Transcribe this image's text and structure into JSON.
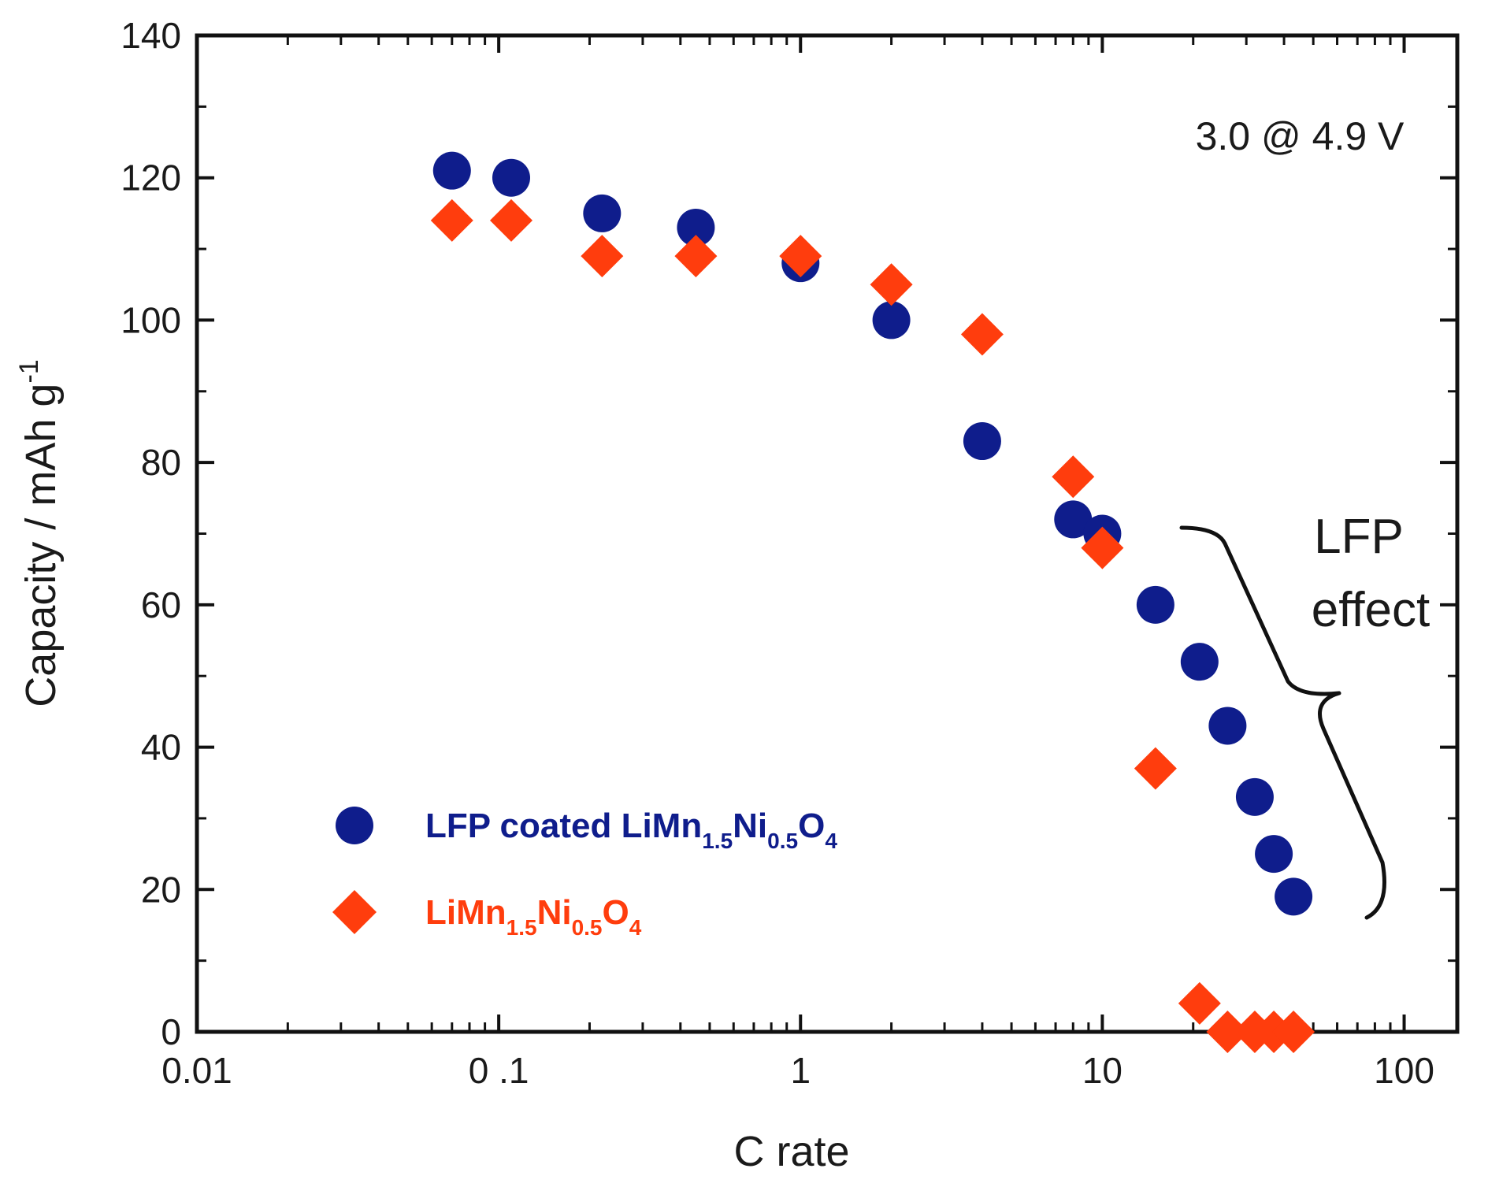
{
  "chart_data": {
    "type": "scatter",
    "title": "",
    "xlabel": "C rate",
    "ylabel": "Capacity / mAh g",
    "ylabel_sup": "-1",
    "xscale": "log",
    "xlim": [
      0.01,
      150
    ],
    "ylim": [
      0,
      140
    ],
    "xticks": [
      {
        "value": 0.01,
        "label": "0.01"
      },
      {
        "value": 0.1,
        "label": "0 .1"
      },
      {
        "value": 1,
        "label": "1"
      },
      {
        "value": 10,
        "label": "10"
      },
      {
        "value": 100,
        "label": "100"
      }
    ],
    "yticks": [
      0,
      20,
      40,
      60,
      80,
      100,
      120,
      140
    ],
    "annotation": "3.0 @ 4.9 V",
    "bracket_label_line1": "LFP",
    "bracket_label_line2": "effect",
    "series": [
      {
        "name": "LFP coated LiMn1.5Ni0.5O4",
        "legend_parts": [
          "LFP coated LiMn",
          "1.5",
          "Ni",
          "0.5",
          "O",
          "4"
        ],
        "marker": "circle",
        "color": "#0f1d8c",
        "x": [
          0.07,
          0.11,
          0.22,
          0.45,
          1.0,
          2.0,
          4.0,
          8.0,
          10.0,
          15.0,
          21.0,
          26.0,
          32.0,
          37.0,
          43.0
        ],
        "y": [
          121,
          120,
          115,
          113,
          108,
          100,
          83,
          72,
          70,
          60,
          52,
          43,
          33,
          25,
          19
        ]
      },
      {
        "name": "LiMn1.5Ni0.5O4",
        "legend_parts": [
          "LiMn",
          "1.5",
          "Ni",
          "0.5",
          "O",
          "4"
        ],
        "marker": "diamond",
        "color": "#ff3d0d",
        "x": [
          0.07,
          0.11,
          0.22,
          0.45,
          1.0,
          2.0,
          4.0,
          8.0,
          10.0,
          15.0,
          21.0,
          26.0,
          32.0,
          37.0,
          43.0
        ],
        "y": [
          114,
          114,
          109,
          109,
          109,
          105,
          98,
          78,
          68,
          37,
          4,
          0,
          0,
          0,
          0
        ]
      }
    ]
  }
}
